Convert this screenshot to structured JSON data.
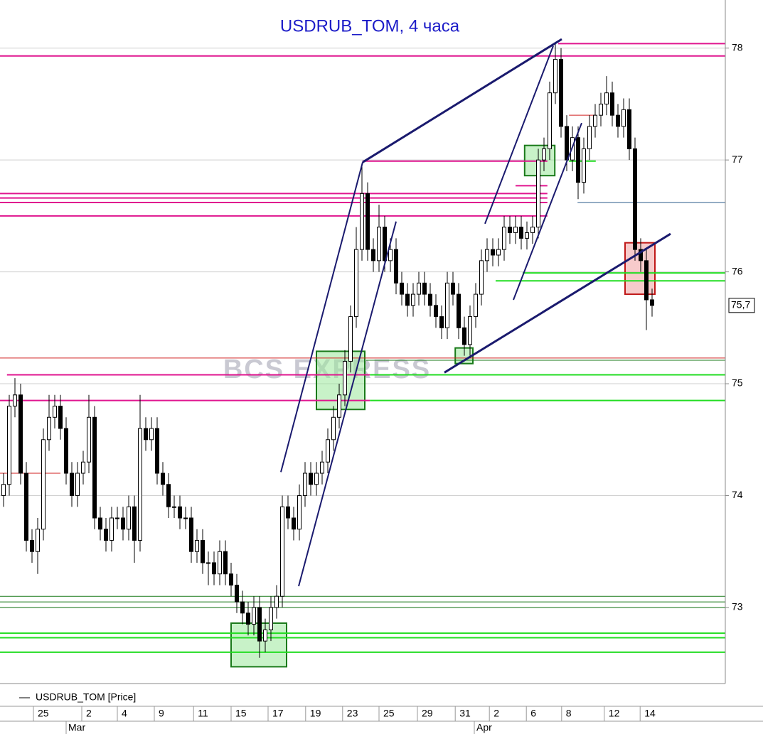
{
  "chart_data": {
    "type": "candlestick",
    "title": "USDRUB_TOM, 4 часа",
    "watermark": "BCS EXPRESS",
    "series_name": "USDRUB_TOM [Price]",
    "up_color": "#ffffff",
    "down_color": "#000000",
    "title_color": "#1c1cc8",
    "grid": true,
    "ylim": [
      72.32,
      78.43
    ],
    "yticks": [
      73,
      74,
      75,
      76,
      77,
      78
    ],
    "xlim": [
      -0.625,
      126.875
    ],
    "xticks": [
      {
        "value": 5.25,
        "label": "25"
      },
      {
        "value": 13.75,
        "label": "2"
      },
      {
        "value": 20,
        "label": "4"
      },
      {
        "value": 26.5,
        "label": "9"
      },
      {
        "value": 33.4,
        "label": "11"
      },
      {
        "value": 40,
        "label": "15"
      },
      {
        "value": 46.5,
        "label": "17"
      },
      {
        "value": 53.1,
        "label": "19"
      },
      {
        "value": 59.6,
        "label": "23"
      },
      {
        "value": 66,
        "label": "25"
      },
      {
        "value": 72.75,
        "label": "29"
      },
      {
        "value": 79.4,
        "label": "31"
      },
      {
        "value": 85.4,
        "label": "2"
      },
      {
        "value": 91.9,
        "label": "6"
      },
      {
        "value": 98.1,
        "label": "8"
      },
      {
        "value": 105.6,
        "label": "12"
      },
      {
        "value": 111.9,
        "label": "14"
      }
    ],
    "month_ticks": [
      {
        "value": 11,
        "label": "Mar"
      },
      {
        "value": 82.75,
        "label": "Apr"
      }
    ],
    "last_price": {
      "value": 75.7,
      "label": "75,7"
    },
    "open": [
      74.0,
      74.1,
      74.8,
      74.9,
      74.2,
      73.6,
      73.5,
      73.7,
      74.5,
      74.7,
      74.8,
      74.6,
      74.2,
      74.0,
      74.2,
      74.3,
      74.7,
      73.8,
      73.7,
      73.6,
      73.8,
      73.8,
      73.7,
      73.9,
      73.6,
      74.6,
      74.5,
      74.6,
      74.2,
      74.1,
      73.9,
      73.9,
      73.8,
      73.8,
      73.5,
      73.6,
      73.4,
      73.4,
      73.3,
      73.5,
      73.3,
      73.2,
      73.05,
      72.95,
      72.85,
      73.0,
      72.7,
      72.8,
      73.0,
      73.1,
      73.9,
      73.8,
      73.7,
      74.0,
      74.2,
      74.1,
      74.2,
      74.3,
      74.5,
      74.7,
      74.9,
      75.2,
      75.6,
      76.2,
      76.7,
      76.2,
      76.1,
      76.4,
      76.1,
      76.2,
      75.9,
      75.8,
      75.7,
      75.8,
      75.9,
      75.8,
      75.7,
      75.6,
      75.5,
      75.9,
      75.8,
      75.5,
      75.35,
      75.6,
      75.8,
      76.1,
      76.2,
      76.15,
      76.2,
      76.4,
      76.35,
      76.4,
      76.3,
      76.35,
      76.4,
      77.0,
      77.1,
      77.6,
      77.9,
      77.3,
      77.0,
      77.2,
      76.8,
      77.1,
      77.3,
      77.4,
      77.5,
      77.6,
      77.4,
      77.3,
      77.45,
      77.1,
      76.2,
      76.1,
      75.75
    ],
    "high": [
      74.2,
      74.9,
      75.05,
      75.0,
      74.3,
      73.7,
      73.8,
      74.6,
      74.9,
      74.9,
      74.9,
      74.7,
      74.3,
      74.3,
      74.4,
      74.9,
      74.8,
      73.9,
      73.8,
      73.9,
      73.9,
      73.9,
      74.0,
      74.0,
      74.9,
      74.7,
      74.7,
      74.7,
      74.3,
      74.2,
      74.0,
      74.0,
      73.9,
      73.9,
      73.7,
      73.7,
      73.5,
      73.5,
      73.6,
      73.6,
      73.4,
      73.3,
      73.15,
      73.05,
      73.1,
      73.1,
      72.9,
      73.1,
      73.2,
      74.0,
      74.0,
      73.9,
      74.1,
      74.3,
      74.3,
      74.3,
      74.4,
      74.6,
      74.8,
      75.0,
      75.3,
      75.7,
      76.4,
      76.95,
      76.8,
      76.3,
      76.6,
      76.5,
      76.3,
      76.3,
      76.0,
      75.9,
      75.9,
      76.0,
      76.0,
      75.9,
      75.8,
      75.7,
      76.0,
      76.0,
      75.9,
      75.6,
      75.7,
      75.9,
      76.2,
      76.3,
      76.3,
      76.3,
      76.5,
      76.5,
      76.5,
      76.5,
      76.45,
      76.5,
      77.1,
      77.2,
      77.7,
      78.05,
      78.0,
      77.4,
      77.3,
      77.3,
      77.2,
      77.4,
      77.5,
      77.6,
      77.75,
      77.7,
      77.5,
      77.55,
      77.55,
      77.2,
      76.3,
      76.2,
      75.85
    ],
    "low": [
      73.9,
      74.0,
      74.7,
      74.1,
      73.5,
      73.4,
      73.3,
      73.6,
      74.4,
      74.6,
      74.5,
      74.1,
      73.9,
      73.9,
      74.1,
      74.2,
      73.7,
      73.6,
      73.5,
      73.5,
      73.7,
      73.6,
      73.6,
      73.4,
      73.5,
      74.4,
      74.4,
      74.1,
      74.0,
      73.8,
      73.8,
      73.7,
      73.7,
      73.4,
      73.4,
      73.3,
      73.2,
      73.2,
      73.2,
      73.2,
      73.1,
      72.95,
      72.85,
      72.75,
      72.75,
      72.55,
      72.6,
      72.7,
      72.9,
      73.0,
      73.7,
      73.6,
      73.6,
      73.9,
      74.0,
      74.0,
      74.1,
      74.2,
      74.4,
      74.6,
      74.8,
      75.1,
      75.5,
      76.1,
      76.1,
      76.0,
      76.0,
      76.0,
      76.0,
      75.8,
      75.7,
      75.6,
      75.6,
      75.7,
      75.7,
      75.6,
      75.5,
      75.4,
      75.4,
      75.7,
      75.4,
      75.25,
      75.25,
      75.5,
      75.7,
      76.0,
      76.05,
      76.05,
      76.1,
      76.25,
      76.25,
      76.2,
      76.2,
      76.25,
      76.3,
      76.9,
      77.0,
      77.5,
      77.2,
      76.9,
      76.9,
      76.65,
      76.7,
      77.0,
      77.2,
      77.3,
      77.4,
      77.3,
      77.2,
      77.2,
      77.0,
      76.1,
      76.0,
      75.48,
      75.6
    ],
    "close": [
      74.1,
      74.8,
      74.9,
      74.2,
      73.6,
      73.5,
      73.7,
      74.5,
      74.7,
      74.8,
      74.6,
      74.2,
      74.0,
      74.2,
      74.3,
      74.7,
      73.8,
      73.7,
      73.6,
      73.8,
      73.8,
      73.7,
      73.9,
      73.6,
      74.6,
      74.5,
      74.6,
      74.2,
      74.1,
      73.9,
      73.9,
      73.8,
      73.8,
      73.5,
      73.6,
      73.4,
      73.4,
      73.3,
      73.5,
      73.3,
      73.2,
      73.05,
      72.95,
      72.85,
      73.0,
      72.7,
      72.8,
      73.0,
      73.1,
      73.9,
      73.8,
      73.7,
      74.0,
      74.2,
      74.1,
      74.2,
      74.3,
      74.5,
      74.7,
      74.9,
      75.2,
      75.6,
      76.2,
      76.7,
      76.2,
      76.1,
      76.4,
      76.1,
      76.2,
      75.9,
      75.8,
      75.7,
      75.8,
      75.9,
      75.8,
      75.7,
      75.6,
      75.5,
      75.9,
      75.8,
      75.5,
      75.35,
      75.6,
      75.8,
      76.1,
      76.2,
      76.15,
      76.2,
      76.4,
      76.35,
      76.4,
      76.3,
      76.35,
      76.4,
      77.0,
      77.1,
      77.6,
      77.9,
      77.3,
      77.0,
      77.2,
      76.8,
      77.1,
      77.3,
      77.4,
      77.5,
      77.6,
      77.4,
      77.3,
      77.45,
      77.1,
      76.2,
      76.1,
      75.75,
      75.7
    ],
    "hlines": [
      {
        "y": 78.04,
        "x": [
          97.5,
          126.875
        ],
        "color": "#e0158f",
        "width": 2
      },
      {
        "y": 77.93,
        "x": [
          -0.625,
          126.875
        ],
        "color": "#e0158f",
        "width": 2
      },
      {
        "y": 76.99,
        "x": [
          63.1,
          95.6
        ],
        "color": "#e0158f",
        "width": 2
      },
      {
        "y": 76.77,
        "x": [
          90,
          95.6
        ],
        "color": "#e0158f",
        "width": 2
      },
      {
        "y": 76.7,
        "x": [
          -0.625,
          95.6
        ],
        "color": "#e0158f",
        "width": 2
      },
      {
        "y": 76.66,
        "x": [
          -0.625,
          95.6
        ],
        "color": "#e0158f",
        "width": 2
      },
      {
        "y": 76.62,
        "x": [
          -0.625,
          95.6
        ],
        "color": "#e0158f",
        "width": 2
      },
      {
        "y": 76.5,
        "x": [
          -0.625,
          95.6
        ],
        "color": "#e0158f",
        "width": 2
      },
      {
        "y": 76.62,
        "x": [
          100.9,
          126.875
        ],
        "color": "#2a5a8a",
        "width": 1
      },
      {
        "y": 77.4,
        "x": [
          99.4,
          104.1
        ],
        "color": "#d02020",
        "width": 1
      },
      {
        "y": 76.99,
        "x": [
          99.4,
          104.1
        ],
        "color": "#22dd22",
        "width": 2
      },
      {
        "y": 75.99,
        "x": [
          91.25,
          126.875
        ],
        "color": "#22dd22",
        "width": 2
      },
      {
        "y": 75.92,
        "x": [
          86.5,
          126.875
        ],
        "color": "#22dd22",
        "width": 2
      },
      {
        "y": 75.23,
        "x": [
          -0.625,
          126.875
        ],
        "color": "#d02020",
        "width": 1
      },
      {
        "y": 75.21,
        "x": [
          63.75,
          126.875
        ],
        "color": "#1a7a1a",
        "width": 1
      },
      {
        "y": 75.08,
        "x": [
          0.6,
          64.4
        ],
        "color": "#e0158f",
        "width": 2
      },
      {
        "y": 75.08,
        "x": [
          64.4,
          126.875
        ],
        "color": "#22dd22",
        "width": 2
      },
      {
        "y": 74.85,
        "x": [
          -0.625,
          64.4
        ],
        "color": "#e0158f",
        "width": 2
      },
      {
        "y": 74.85,
        "x": [
          64.4,
          126.875
        ],
        "color": "#22dd22",
        "width": 2
      },
      {
        "y": 74.2,
        "x": [
          -0.625,
          10
        ],
        "color": "#d02020",
        "width": 1
      },
      {
        "y": 73.1,
        "x": [
          -0.625,
          126.875
        ],
        "color": "#1a7a1a",
        "width": 1
      },
      {
        "y": 73.05,
        "x": [
          -0.625,
          126.875
        ],
        "color": "#1a7a1a",
        "width": 1
      },
      {
        "y": 73.0,
        "x": [
          -0.625,
          126.875
        ],
        "color": "#1a7a1a",
        "width": 1
      },
      {
        "y": 72.77,
        "x": [
          -0.625,
          126.875
        ],
        "color": "#22dd22",
        "width": 2
      },
      {
        "y": 72.73,
        "x": [
          -0.625,
          126.875
        ],
        "color": "#22dd22",
        "width": 2
      },
      {
        "y": 72.6,
        "x": [
          -0.625,
          126.875
        ],
        "color": "#22dd22",
        "width": 2
      }
    ],
    "trendlines": [
      {
        "x": [
          48.75,
          63.125
        ],
        "y": [
          74.21,
          76.98
        ],
        "color": "#1a1a6e",
        "width": 2
      },
      {
        "x": [
          63.125,
          98.125
        ],
        "y": [
          76.98,
          78.08
        ],
        "color": "#1a1a6e",
        "width": 3
      },
      {
        "x": [
          51.875,
          69
        ],
        "y": [
          73.19,
          76.45
        ],
        "color": "#1a1a6e",
        "width": 2
      },
      {
        "x": [
          84.625,
          96.625
        ],
        "y": [
          76.43,
          78.02
        ],
        "color": "#1a1a6e",
        "width": 2
      },
      {
        "x": [
          89.625,
          101.625
        ],
        "y": [
          75.75,
          77.33
        ],
        "color": "#1a1a6e",
        "width": 2
      },
      {
        "x": [
          77.5,
          117.25
        ],
        "y": [
          75.1,
          76.34
        ],
        "color": "#1a1a6e",
        "width": 3
      }
    ],
    "boxes": [
      {
        "x": [
          40,
          49.75
        ],
        "y": [
          72.47,
          72.86
        ],
        "fill": "#9be89b",
        "stroke": "#1a7a1a"
      },
      {
        "x": [
          55,
          63.5
        ],
        "y": [
          74.77,
          75.29
        ],
        "fill": "#9be89b",
        "stroke": "#1a7a1a"
      },
      {
        "x": [
          91.6,
          96.9
        ],
        "y": [
          76.86,
          77.13
        ],
        "fill": "#9be89b",
        "stroke": "#1a7a1a"
      },
      {
        "x": [
          79.4,
          82.5
        ],
        "y": [
          75.18,
          75.32
        ],
        "fill": "#9be89b",
        "stroke": "#1a7a1a"
      },
      {
        "x": [
          109.25,
          114.5
        ],
        "y": [
          75.8,
          76.26
        ],
        "fill": "#f0a0a0",
        "stroke": "#c01818"
      }
    ]
  }
}
